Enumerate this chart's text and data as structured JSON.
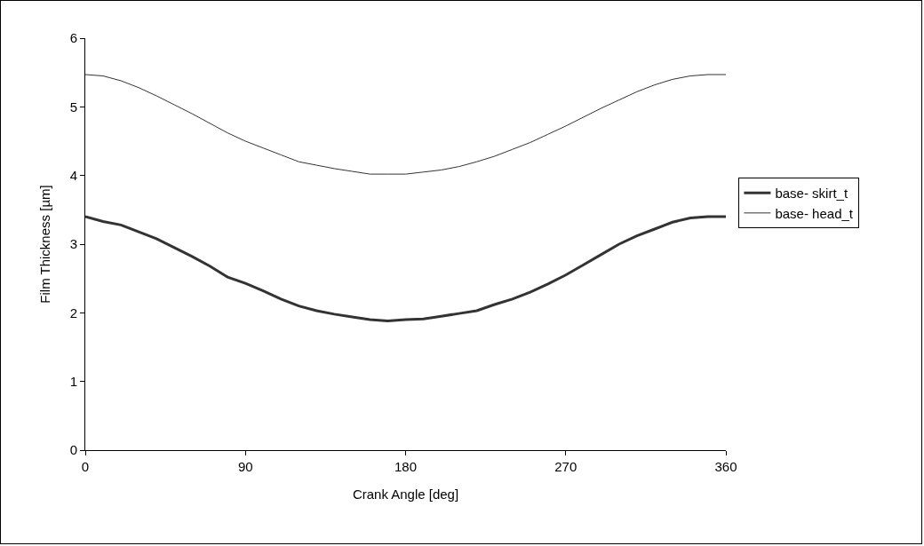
{
  "chart_data": {
    "type": "line",
    "xlabel": "Crank Angle [deg]",
    "ylabel": "Film Thickness [µm]",
    "x": [
      0,
      10,
      20,
      30,
      40,
      50,
      60,
      70,
      80,
      90,
      100,
      110,
      120,
      130,
      140,
      150,
      160,
      170,
      180,
      190,
      200,
      210,
      220,
      230,
      240,
      250,
      260,
      270,
      280,
      290,
      300,
      310,
      320,
      330,
      340,
      350,
      360
    ],
    "series": [
      {
        "name": "base- skirt_t",
        "color": "#333333",
        "values": [
          3.4,
          3.33,
          3.28,
          3.18,
          3.08,
          2.95,
          2.82,
          2.68,
          2.52,
          2.43,
          2.32,
          2.2,
          2.1,
          2.03,
          1.98,
          1.94,
          1.9,
          1.88,
          1.9,
          1.91,
          1.95,
          1.99,
          2.03,
          2.12,
          2.2,
          2.3,
          2.42,
          2.55,
          2.7,
          2.85,
          3.0,
          3.12,
          3.22,
          3.32,
          3.38,
          3.4,
          3.4
        ]
      },
      {
        "name": "base- head_t",
        "color": "#333333",
        "values": [
          5.47,
          5.45,
          5.38,
          5.28,
          5.16,
          5.03,
          4.9,
          4.76,
          4.62,
          4.5,
          4.4,
          4.3,
          4.2,
          4.15,
          4.1,
          4.06,
          4.02,
          4.02,
          4.02,
          4.05,
          4.08,
          4.13,
          4.2,
          4.28,
          4.38,
          4.48,
          4.6,
          4.72,
          4.85,
          4.98,
          5.1,
          5.22,
          5.32,
          5.4,
          5.45,
          5.47,
          5.47
        ]
      }
    ],
    "xlim": [
      0,
      360
    ],
    "xticks": [
      0,
      90,
      180,
      270,
      360
    ],
    "ylim": [
      0,
      6
    ],
    "yticks": [
      0,
      1,
      2,
      3,
      4,
      5,
      6
    ],
    "grid": false,
    "legend": "right",
    "marker": "none",
    "line_style": "solid"
  }
}
